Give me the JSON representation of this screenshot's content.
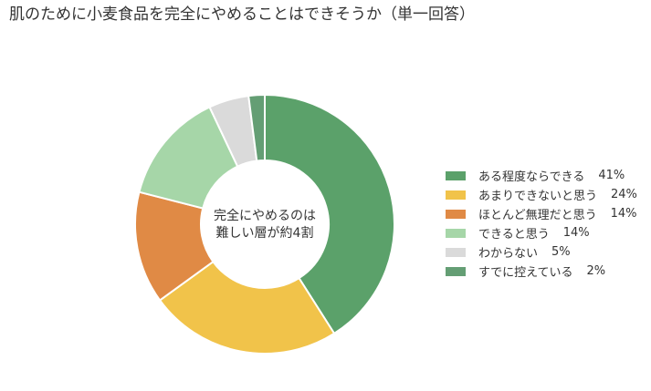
{
  "title": "肌のために小麦食品を完全にやめることはできそうか（単一回答）",
  "center_text": {
    "line1": "完全にやめるのは",
    "line2": "難しい層が約4割"
  },
  "chart_data": {
    "type": "pie",
    "style": "donut",
    "title": "肌のために小麦食品を完全にやめることはできそうか（単一回答）",
    "legend_position": "right",
    "slices": [
      {
        "label": "ある程度ならできる",
        "value": 41,
        "value_label": "41%",
        "color": "#5ba16a"
      },
      {
        "label": "あまりできないと思う",
        "value": 24,
        "value_label": "24%",
        "color": "#f1c34a"
      },
      {
        "label": "ほとんど無理だと思う",
        "value": 14,
        "value_label": "14%",
        "color": "#e08a45"
      },
      {
        "label": "できると思う",
        "value": 14,
        "value_label": "14%",
        "color": "#a6d6a8"
      },
      {
        "label": "わからない",
        "value": 5,
        "value_label": "5%",
        "color": "#dadada"
      },
      {
        "label": "すでに控えている",
        "value": 2,
        "value_label": "2%",
        "color": "#649e74"
      }
    ]
  }
}
